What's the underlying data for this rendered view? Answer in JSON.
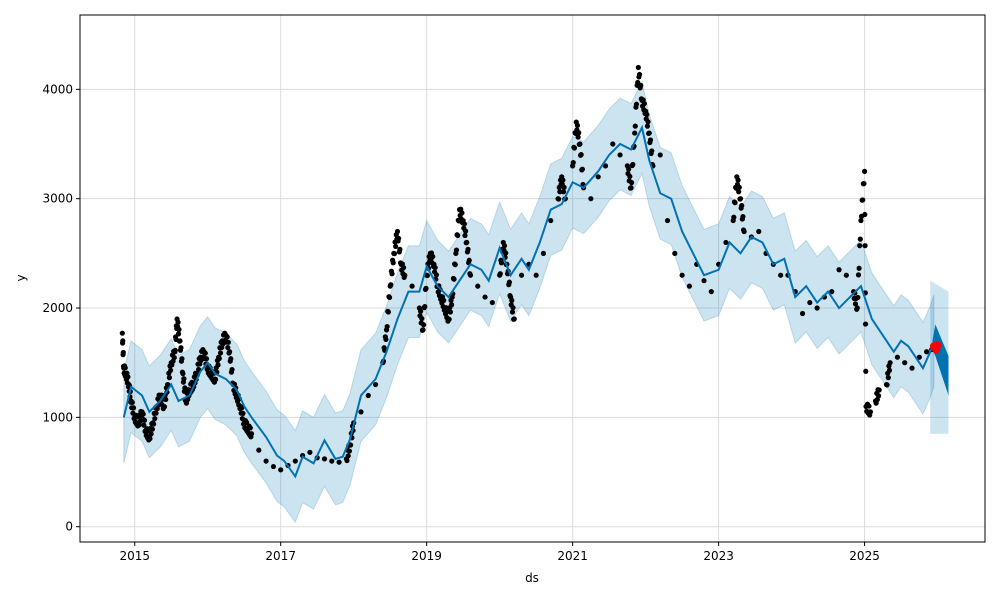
{
  "chart_data": {
    "type": "line",
    "title": "",
    "xlabel": "ds",
    "ylabel": "y",
    "xlim": [
      2014.25,
      2026.65
    ],
    "ylim": [
      -140,
      4680
    ],
    "xticks": [
      2015,
      2017,
      2019,
      2021,
      2023,
      2025
    ],
    "yticks": [
      0,
      1000,
      2000,
      3000,
      4000
    ],
    "grid": true,
    "colors": {
      "forecast": "#0072B2",
      "interval": "#0072B2",
      "observed": "#000000",
      "highlight": "#ff0000"
    },
    "uncertainty_halfwidth": 420,
    "yhat": [
      [
        2014.85,
        1000
      ],
      [
        2014.95,
        1280
      ],
      [
        2015.1,
        1200
      ],
      [
        2015.2,
        1050
      ],
      [
        2015.35,
        1150
      ],
      [
        2015.5,
        1300
      ],
      [
        2015.6,
        1150
      ],
      [
        2015.75,
        1200
      ],
      [
        2015.9,
        1420
      ],
      [
        2016.0,
        1500
      ],
      [
        2016.1,
        1400
      ],
      [
        2016.25,
        1350
      ],
      [
        2016.4,
        1250
      ],
      [
        2016.5,
        1100
      ],
      [
        2016.6,
        1000
      ],
      [
        2016.8,
        820
      ],
      [
        2016.95,
        650
      ],
      [
        2017.05,
        600
      ],
      [
        2017.2,
        460
      ],
      [
        2017.3,
        640
      ],
      [
        2017.45,
        580
      ],
      [
        2017.6,
        790
      ],
      [
        2017.75,
        620
      ],
      [
        2017.85,
        640
      ],
      [
        2017.95,
        800
      ],
      [
        2018.1,
        1200
      ],
      [
        2018.3,
        1350
      ],
      [
        2018.45,
        1600
      ],
      [
        2018.6,
        1900
      ],
      [
        2018.75,
        2150
      ],
      [
        2018.9,
        2150
      ],
      [
        2019.0,
        2380
      ],
      [
        2019.15,
        2200
      ],
      [
        2019.3,
        2100
      ],
      [
        2019.45,
        2250
      ],
      [
        2019.6,
        2400
      ],
      [
        2019.75,
        2350
      ],
      [
        2019.85,
        2250
      ],
      [
        2020.0,
        2550
      ],
      [
        2020.15,
        2300
      ],
      [
        2020.3,
        2450
      ],
      [
        2020.4,
        2350
      ],
      [
        2020.55,
        2600
      ],
      [
        2020.7,
        2900
      ],
      [
        2020.85,
        2950
      ],
      [
        2021.0,
        3150
      ],
      [
        2021.15,
        3100
      ],
      [
        2021.35,
        3250
      ],
      [
        2021.5,
        3400
      ],
      [
        2021.65,
        3500
      ],
      [
        2021.8,
        3450
      ],
      [
        2021.95,
        3650
      ],
      [
        2022.05,
        3350
      ],
      [
        2022.2,
        3050
      ],
      [
        2022.35,
        3000
      ],
      [
        2022.5,
        2700
      ],
      [
        2022.65,
        2500
      ],
      [
        2022.8,
        2300
      ],
      [
        2023.0,
        2350
      ],
      [
        2023.15,
        2600
      ],
      [
        2023.3,
        2500
      ],
      [
        2023.45,
        2650
      ],
      [
        2023.6,
        2600
      ],
      [
        2023.75,
        2400
      ],
      [
        2023.9,
        2450
      ],
      [
        2024.05,
        2100
      ],
      [
        2024.2,
        2200
      ],
      [
        2024.35,
        2050
      ],
      [
        2024.5,
        2150
      ],
      [
        2024.65,
        2000
      ],
      [
        2024.8,
        2100
      ],
      [
        2024.95,
        2200
      ],
      [
        2025.1,
        1900
      ],
      [
        2025.25,
        1750
      ],
      [
        2025.4,
        1600
      ],
      [
        2025.5,
        1700
      ],
      [
        2025.6,
        1650
      ],
      [
        2025.7,
        1550
      ],
      [
        2025.8,
        1450
      ],
      [
        2025.9,
        1600
      ],
      [
        2025.95,
        1700
      ]
    ],
    "forecast_band": [
      [
        2025.93,
        1700,
        1620
      ],
      [
        2025.97,
        1850,
        1560
      ],
      [
        2026.15,
        1560,
        1200
      ]
    ],
    "forecast_interval": [
      [
        2025.9,
        2250,
        850
      ],
      [
        2026.15,
        2150,
        850
      ]
    ],
    "observed": [
      [
        2014.83,
        1770
      ],
      [
        2014.85,
        1450
      ],
      [
        2014.88,
        1400
      ],
      [
        2014.92,
        1300
      ],
      [
        2014.95,
        1150
      ],
      [
        2015.0,
        1000
      ],
      [
        2015.05,
        950
      ],
      [
        2015.1,
        1050
      ],
      [
        2015.15,
        880
      ],
      [
        2015.2,
        820
      ],
      [
        2015.25,
        950
      ],
      [
        2015.3,
        1100
      ],
      [
        2015.35,
        1200
      ],
      [
        2015.4,
        1100
      ],
      [
        2015.45,
        1300
      ],
      [
        2015.5,
        1500
      ],
      [
        2015.55,
        1600
      ],
      [
        2015.58,
        1900
      ],
      [
        2015.62,
        1700
      ],
      [
        2015.66,
        1400
      ],
      [
        2015.7,
        1150
      ],
      [
        2015.75,
        1250
      ],
      [
        2015.8,
        1300
      ],
      [
        2015.85,
        1400
      ],
      [
        2015.9,
        1550
      ],
      [
        2015.95,
        1600
      ],
      [
        2016.0,
        1450
      ],
      [
        2016.05,
        1400
      ],
      [
        2016.1,
        1350
      ],
      [
        2016.15,
        1550
      ],
      [
        2016.2,
        1700
      ],
      [
        2016.25,
        1750
      ],
      [
        2016.3,
        1600
      ],
      [
        2016.35,
        1300
      ],
      [
        2016.4,
        1200
      ],
      [
        2016.45,
        1100
      ],
      [
        2016.5,
        950
      ],
      [
        2016.55,
        900
      ],
      [
        2016.6,
        850
      ],
      [
        2016.7,
        700
      ],
      [
        2016.8,
        600
      ],
      [
        2016.9,
        550
      ],
      [
        2017.0,
        520
      ],
      [
        2017.1,
        560
      ],
      [
        2017.2,
        600
      ],
      [
        2017.3,
        650
      ],
      [
        2017.4,
        680
      ],
      [
        2017.5,
        630
      ],
      [
        2017.6,
        620
      ],
      [
        2017.7,
        600
      ],
      [
        2017.8,
        590
      ],
      [
        2017.9,
        620
      ],
      [
        2017.95,
        750
      ],
      [
        2018.0,
        950
      ],
      [
        2018.1,
        1050
      ],
      [
        2018.2,
        1200
      ],
      [
        2018.3,
        1300
      ],
      [
        2018.4,
        1500
      ],
      [
        2018.45,
        1800
      ],
      [
        2018.5,
        2200
      ],
      [
        2018.55,
        2500
      ],
      [
        2018.6,
        2700
      ],
      [
        2018.65,
        2400
      ],
      [
        2018.7,
        2300
      ],
      [
        2018.8,
        2200
      ],
      [
        2018.9,
        2000
      ],
      [
        2018.95,
        1800
      ],
      [
        2019.0,
        2300
      ],
      [
        2019.05,
        2500
      ],
      [
        2019.1,
        2400
      ],
      [
        2019.15,
        2200
      ],
      [
        2019.2,
        2100
      ],
      [
        2019.25,
        2000
      ],
      [
        2019.3,
        1900
      ],
      [
        2019.35,
        2100
      ],
      [
        2019.4,
        2500
      ],
      [
        2019.45,
        2900
      ],
      [
        2019.5,
        2800
      ],
      [
        2019.55,
        2600
      ],
      [
        2019.6,
        2300
      ],
      [
        2019.7,
        2200
      ],
      [
        2019.8,
        2100
      ],
      [
        2019.9,
        2050
      ],
      [
        2020.0,
        2300
      ],
      [
        2020.05,
        2600
      ],
      [
        2020.1,
        2400
      ],
      [
        2020.15,
        2100
      ],
      [
        2020.2,
        1900
      ],
      [
        2020.3,
        2300
      ],
      [
        2020.4,
        2400
      ],
      [
        2020.5,
        2300
      ],
      [
        2020.6,
        2500
      ],
      [
        2020.7,
        2800
      ],
      [
        2020.8,
        3000
      ],
      [
        2020.85,
        3200
      ],
      [
        2020.9,
        3000
      ],
      [
        2021.0,
        3300
      ],
      [
        2021.05,
        3700
      ],
      [
        2021.1,
        3500
      ],
      [
        2021.15,
        3100
      ],
      [
        2021.25,
        3000
      ],
      [
        2021.35,
        3200
      ],
      [
        2021.45,
        3300
      ],
      [
        2021.55,
        3500
      ],
      [
        2021.65,
        3400
      ],
      [
        2021.75,
        3300
      ],
      [
        2021.8,
        3100
      ],
      [
        2021.85,
        3600
      ],
      [
        2021.9,
        4200
      ],
      [
        2021.95,
        3900
      ],
      [
        2022.0,
        3800
      ],
      [
        2022.05,
        3600
      ],
      [
        2022.1,
        3300
      ],
      [
        2022.2,
        3400
      ],
      [
        2022.3,
        2800
      ],
      [
        2022.4,
        2500
      ],
      [
        2022.5,
        2300
      ],
      [
        2022.6,
        2200
      ],
      [
        2022.7,
        2400
      ],
      [
        2022.8,
        2250
      ],
      [
        2022.9,
        2150
      ],
      [
        2023.0,
        2400
      ],
      [
        2023.1,
        2600
      ],
      [
        2023.2,
        2800
      ],
      [
        2023.25,
        3200
      ],
      [
        2023.3,
        3000
      ],
      [
        2023.35,
        2700
      ],
      [
        2023.45,
        2650
      ],
      [
        2023.55,
        2700
      ],
      [
        2023.65,
        2500
      ],
      [
        2023.75,
        2400
      ],
      [
        2023.85,
        2300
      ],
      [
        2023.95,
        2300
      ],
      [
        2024.05,
        2150
      ],
      [
        2024.15,
        1950
      ],
      [
        2024.25,
        2050
      ],
      [
        2024.35,
        2000
      ],
      [
        2024.45,
        2100
      ],
      [
        2024.55,
        2150
      ],
      [
        2024.65,
        2350
      ],
      [
        2024.75,
        2300
      ],
      [
        2024.85,
        2150
      ],
      [
        2024.9,
        2000
      ],
      [
        2024.95,
        2800
      ],
      [
        2025.0,
        3250
      ],
      [
        2025.02,
        1100
      ],
      [
        2025.08,
        1050
      ],
      [
        2025.15,
        1150
      ],
      [
        2025.2,
        1250
      ],
      [
        2025.3,
        1300
      ],
      [
        2025.35,
        1500
      ],
      [
        2025.45,
        1550
      ],
      [
        2025.55,
        1500
      ],
      [
        2025.65,
        1450
      ],
      [
        2025.75,
        1550
      ],
      [
        2025.85,
        1600
      ],
      [
        2025.92,
        1620
      ]
    ],
    "highlighted": [
      [
        2025.95,
        1650
      ],
      [
        2025.98,
        1620
      ],
      [
        2026.0,
        1660
      ]
    ]
  }
}
